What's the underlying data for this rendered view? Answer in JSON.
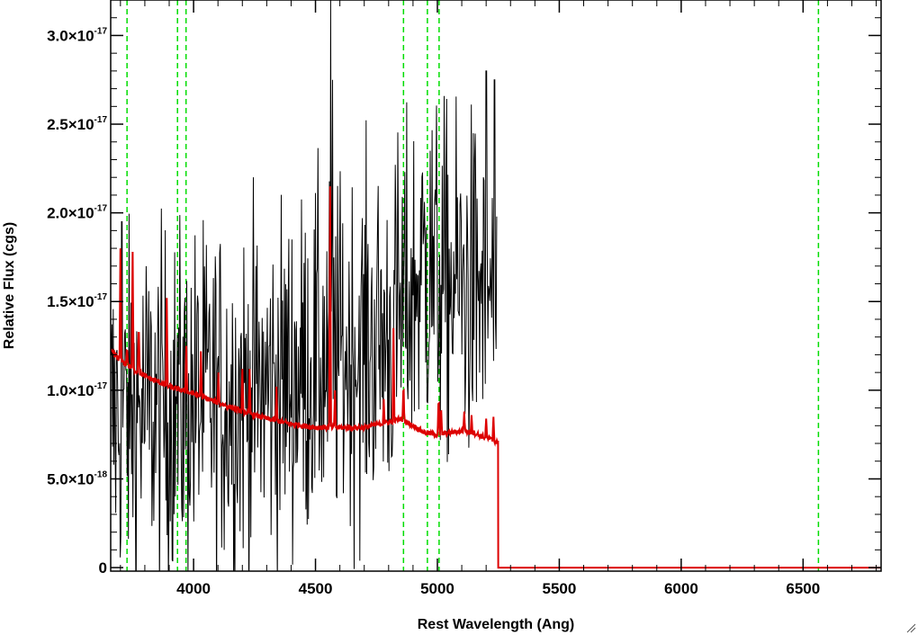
{
  "chart_data": {
    "type": "line",
    "title": "",
    "xlabel": "Rest Wavelength (Ang)",
    "ylabel": "Relative Flux (cgs)",
    "xlim": [
      3660,
      6820
    ],
    "ylim": [
      -2e-19,
      3.2e-17
    ],
    "x_ticks": [
      {
        "value": 4000,
        "label": "4000"
      },
      {
        "value": 4500,
        "label": "4500"
      },
      {
        "value": 5000,
        "label": "5000"
      },
      {
        "value": 5500,
        "label": "5500"
      },
      {
        "value": 6000,
        "label": "6000"
      },
      {
        "value": 6500,
        "label": "6500"
      }
    ],
    "y_ticks": [
      {
        "value": 0,
        "mant": "0",
        "exp": ""
      },
      {
        "value": 5e-18,
        "mant": "5.0×10",
        "exp": "-18"
      },
      {
        "value": 1e-17,
        "mant": "1.0×10",
        "exp": "-17"
      },
      {
        "value": 1.5e-17,
        "mant": "1.5×10",
        "exp": "-17"
      },
      {
        "value": 2e-17,
        "mant": "2.0×10",
        "exp": "-17"
      },
      {
        "value": 2.5e-17,
        "mant": "2.5×10",
        "exp": "-17"
      },
      {
        "value": 3e-17,
        "mant": "3.0×10",
        "exp": "-17"
      }
    ],
    "reference_lines": {
      "color": "#00dd00",
      "style": "dashed",
      "x": [
        3727,
        3934,
        3969,
        4861,
        4959,
        5007,
        6563
      ]
    },
    "series": [
      {
        "color": "#000000",
        "x_range": [
          3660,
          5245
        ],
        "noise_sigma": 5e-18,
        "continuum": [
          [
            3660,
            8.5e-18
          ],
          [
            4300,
            1e-17
          ],
          [
            4500,
            1.15e-17
          ],
          [
            4800,
            1.3e-17
          ],
          [
            4950,
            1.7e-17
          ],
          [
            5020,
            1.6e-17
          ],
          [
            5245,
            1.55e-17
          ]
        ],
        "spikes": [
          [
            3705,
            1.95e-17
          ],
          [
            4562,
            3.2e-17
          ],
          [
            4570,
            2.75e-17
          ],
          [
            4970,
            2.35e-17
          ],
          [
            5200,
            2.8e-17
          ],
          [
            5235,
            2.75e-17
          ]
        ]
      },
      {
        "color": "#dd0000",
        "x": [
          3660,
          3700,
          3750,
          3800,
          3850,
          3900,
          3950,
          4000,
          4100,
          4200,
          4300,
          4400,
          4500,
          4600,
          4700,
          4800,
          4850,
          4900,
          4950,
          5000,
          5050,
          5100,
          5150,
          5200,
          5245,
          5248,
          5250,
          6820
        ],
        "y": [
          1.22e-17,
          1.17e-17,
          1.12e-17,
          1.08e-17,
          1.05e-17,
          1.02e-17,
          1e-17,
          9.8e-18,
          9.3e-18,
          8.8e-18,
          8.4e-18,
          8.1e-18,
          7.9e-18,
          7.9e-18,
          7.9e-18,
          8.2e-18,
          8.4e-18,
          8e-18,
          7.6e-18,
          7.5e-18,
          7.6e-18,
          7.7e-18,
          7.6e-18,
          7.3e-18,
          7.1e-18,
          7.1e-18,
          0.0,
          0.0
        ],
        "spikes": [
          [
            3700,
            1.8e-17
          ],
          [
            3727,
            1.25e-17
          ],
          [
            3750,
            1.78e-17
          ],
          [
            3775,
            1.4e-17
          ],
          [
            3890,
            1.52e-17
          ],
          [
            3970,
            1.25e-17
          ],
          [
            4030,
            1.22e-17
          ],
          [
            4102,
            1.1e-17
          ],
          [
            4200,
            1.12e-17
          ],
          [
            4230,
            1.12e-17
          ],
          [
            4340,
            1.02e-17
          ],
          [
            4560,
            2.15e-17
          ],
          [
            4580,
            1e-17
          ],
          [
            4780,
            9.5e-18
          ],
          [
            4820,
            1.35e-17
          ],
          [
            4861,
            1.05e-17
          ],
          [
            5005,
            9.8e-18
          ],
          [
            5015,
            9.2e-18
          ],
          [
            5110,
            8.8e-18
          ],
          [
            5140,
            8.6e-18
          ],
          [
            5200,
            8.4e-18
          ],
          [
            5230,
            8.5e-18
          ]
        ]
      }
    ]
  }
}
